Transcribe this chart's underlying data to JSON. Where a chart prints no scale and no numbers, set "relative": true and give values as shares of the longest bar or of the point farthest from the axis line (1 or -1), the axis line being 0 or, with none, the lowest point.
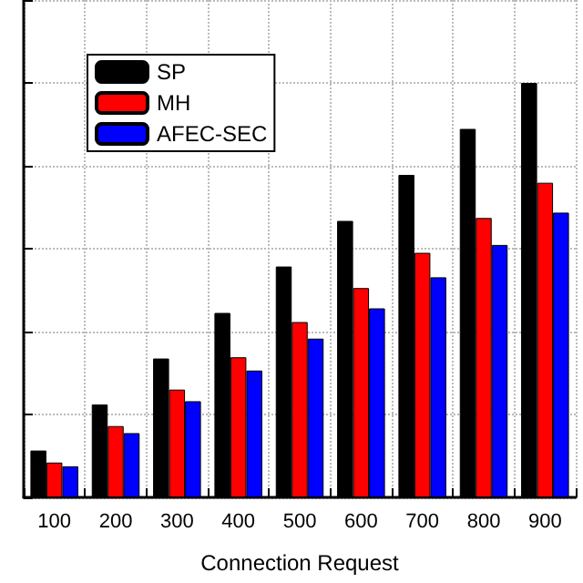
{
  "chart_data": {
    "type": "bar",
    "xlabel": "Connection Request",
    "categories": [
      "100",
      "200",
      "300",
      "400",
      "500",
      "600",
      "700",
      "800",
      "900"
    ],
    "relative": true,
    "grid": true,
    "legend": "top left",
    "series": [
      {
        "name": "SP",
        "color": "#000000",
        "values": [
          0.113,
          0.224,
          0.335,
          0.445,
          0.557,
          0.667,
          0.778,
          0.889,
          1
        ]
      },
      {
        "name": "MH",
        "color": "#ff0000",
        "values": [
          0.084,
          0.172,
          0.26,
          0.338,
          0.423,
          0.505,
          0.59,
          0.674,
          0.759
        ]
      },
      {
        "name": "AFEC-SEC",
        "color": "#0000ff",
        "values": [
          0.075,
          0.155,
          0.232,
          0.306,
          0.383,
          0.456,
          0.531,
          0.609,
          0.687
        ]
      }
    ]
  }
}
